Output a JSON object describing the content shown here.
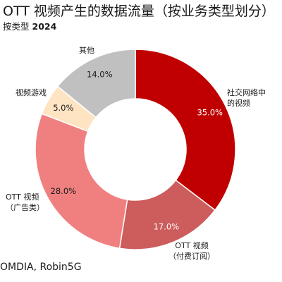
{
  "title": "OTT 视频产生的数据流量（按业务类型划分）",
  "subtitle": {
    "prefix": "按类型",
    "year": "2024"
  },
  "source": "OMDIA, Robin5G",
  "chart_data": {
    "type": "pie",
    "donut": true,
    "title": "OTT 视频产生的数据流量（按业务类型划分）",
    "subtitle": "按类型 2024",
    "unit": "%",
    "slices": [
      {
        "label_lines": [
          "社交网络中",
          "的视频"
        ],
        "value": 35.0,
        "value_label": "35.0%",
        "color": "#c00000",
        "value_label_color": "#ffffff"
      },
      {
        "label_lines": [
          "OTT 视频",
          "（付费订阅）"
        ],
        "value": 17.0,
        "value_label": "17.0%",
        "color": "#cd5c5c",
        "value_label_color": "#ffffff"
      },
      {
        "label_lines": [
          "OTT 视频",
          "（广告类）"
        ],
        "value": 28.0,
        "value_label": "28.0%",
        "color": "#f08080",
        "value_label_color": "#1a1a1a"
      },
      {
        "label_lines": [
          "视频游戏"
        ],
        "value": 5.0,
        "value_label": "5.0%",
        "color": "#ffe4c4",
        "value_label_color": "#1a1a1a"
      },
      {
        "label_lines": [
          "其他"
        ],
        "value": 14.0,
        "value_label": "14.0%",
        "color": "#c0c0c0",
        "value_label_color": "#1a1a1a"
      }
    ]
  }
}
